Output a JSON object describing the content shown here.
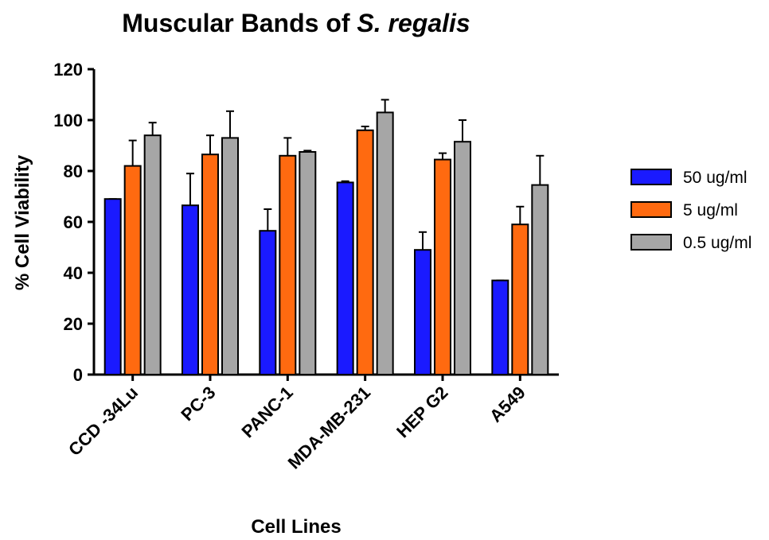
{
  "chart_data": {
    "type": "bar",
    "title": [
      "Muscular Bands of",
      "S. regalis"
    ],
    "x_label": "Cell Lines",
    "y_label": "% Cell Viability",
    "categories": [
      "CCD -34Lu",
      "PC-3",
      "PANC-1",
      "MDA-MB-231",
      "HEP G2",
      "A549"
    ],
    "series": [
      {
        "name": "50 ug/ml",
        "color": "#1a1aff",
        "values": [
          69,
          66.5,
          56.5,
          75.5,
          49,
          37
        ],
        "errors": [
          0,
          12.5,
          8.5,
          0.5,
          7,
          0
        ]
      },
      {
        "name": "5 ug/ml",
        "color": "#ff6a10",
        "values": [
          82,
          86.5,
          86,
          96,
          84.5,
          59
        ],
        "errors": [
          10,
          7.5,
          7,
          1.5,
          2.5,
          7
        ]
      },
      {
        "name": "0.5 ug/ml",
        "color": "#a6a6a6",
        "values": [
          94,
          93,
          87.5,
          103,
          91.5,
          74.5
        ],
        "errors": [
          5,
          10.5,
          0.5,
          5,
          8.5,
          11.5
        ]
      }
    ],
    "ylim": [
      0,
      120
    ],
    "yticks": [
      0,
      20,
      40,
      60,
      80,
      100,
      120
    ],
    "grid": false,
    "legend_position": "right"
  }
}
